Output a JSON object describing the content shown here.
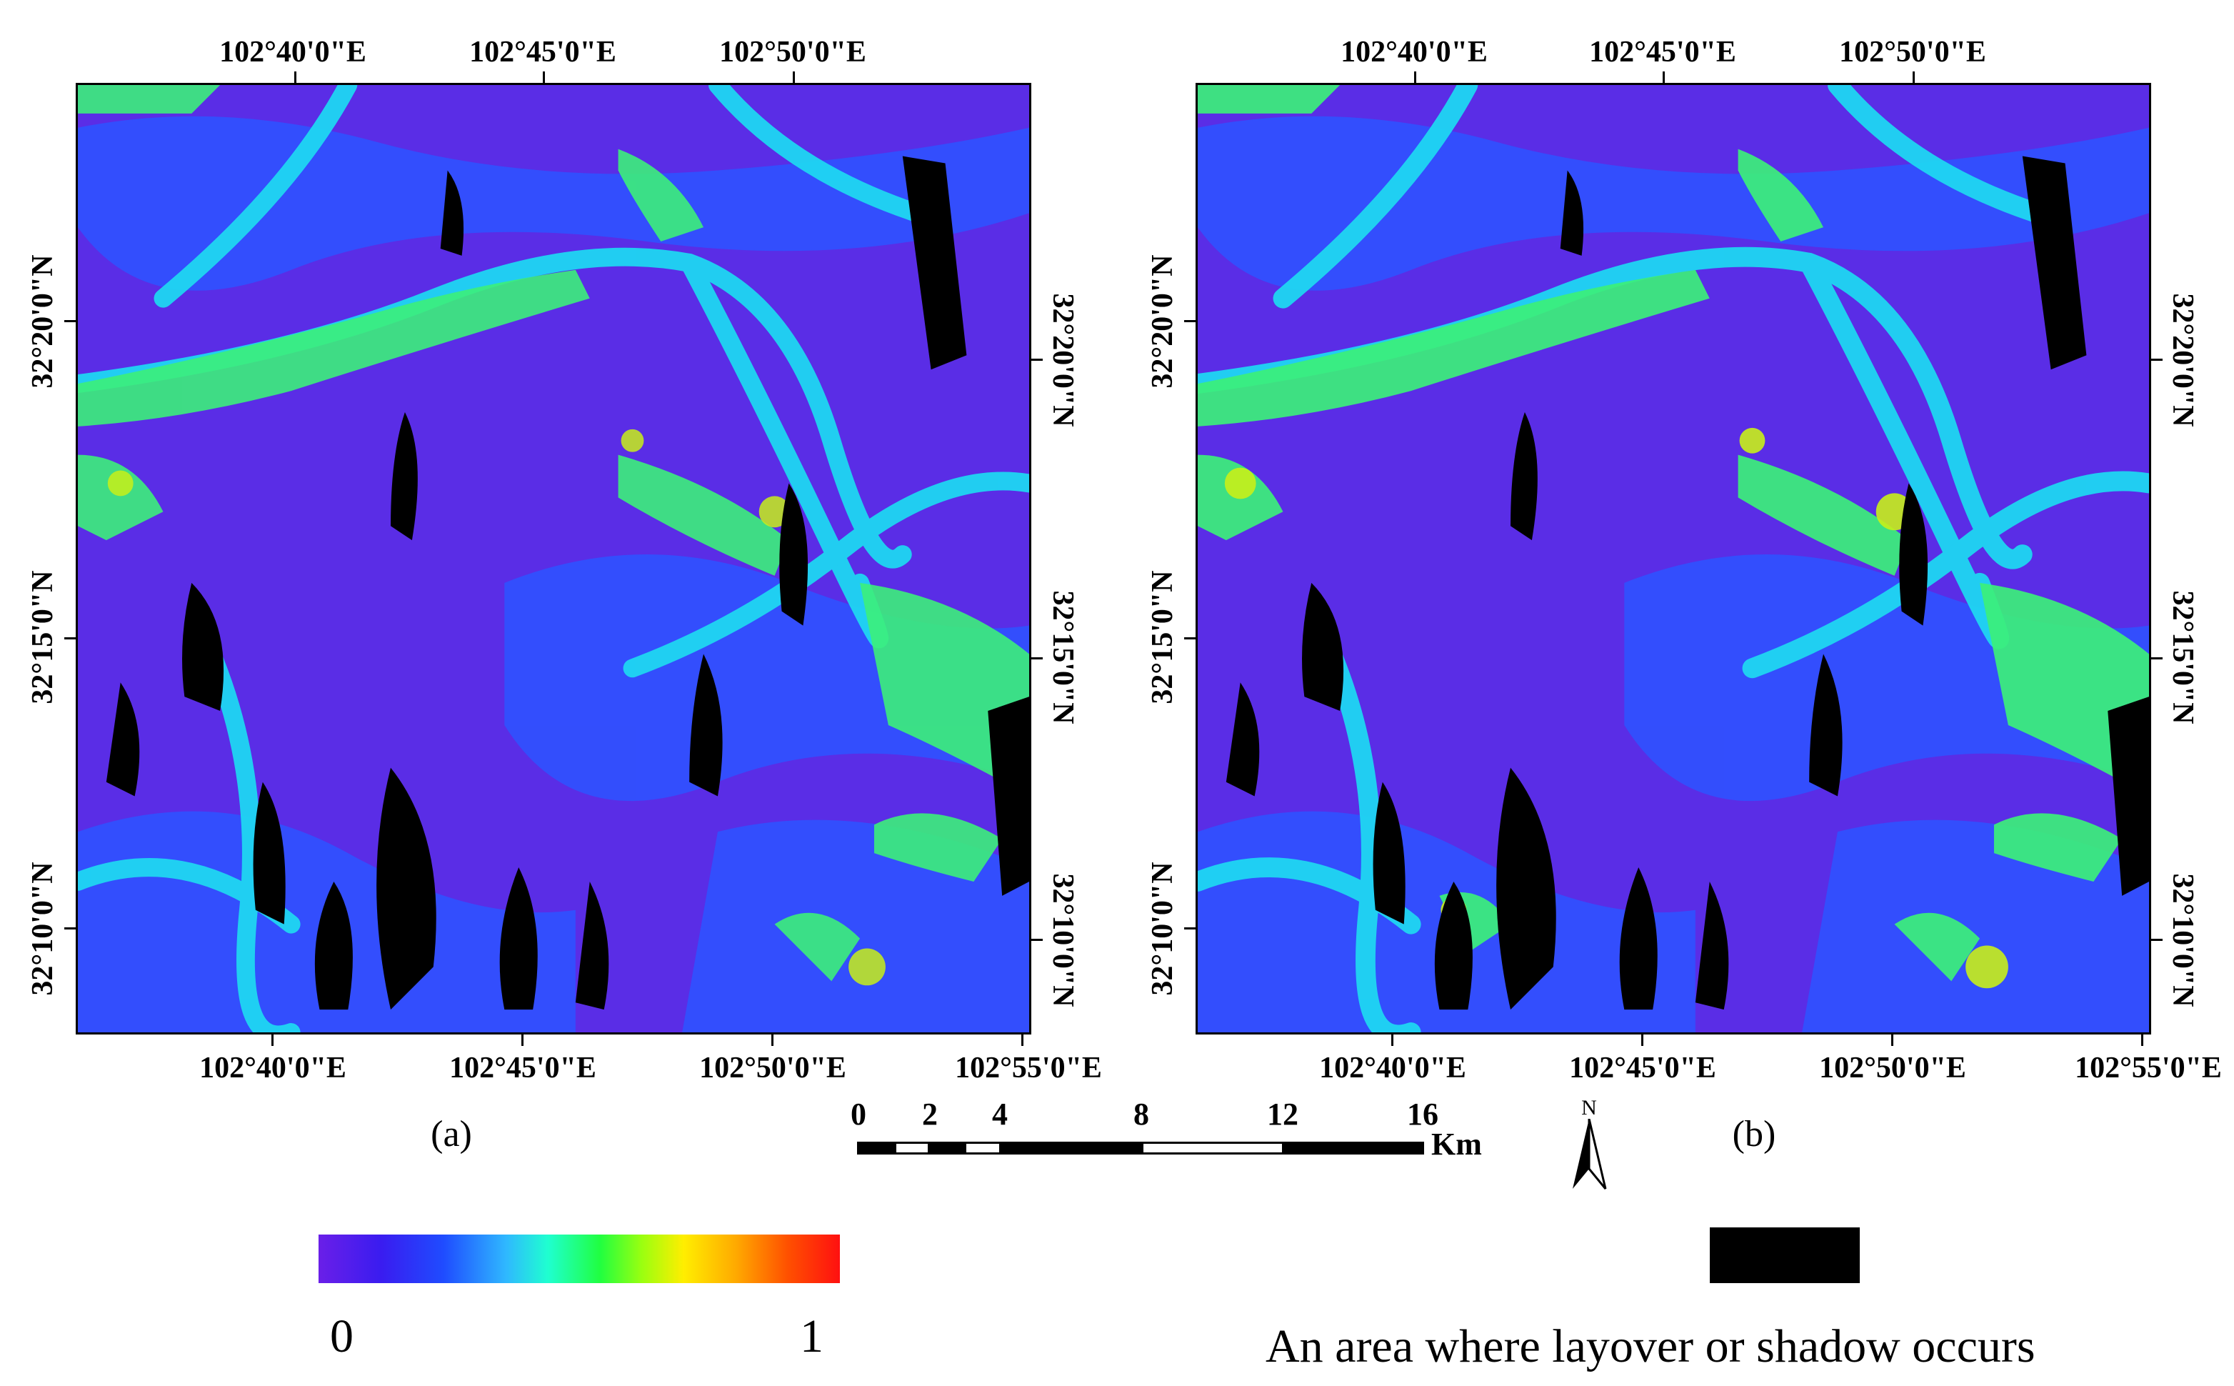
{
  "panels": [
    {
      "id": "a",
      "label": "(a)",
      "top_ticks": [
        "102°40'0\"E",
        "102°45'0\"E",
        "102°50'0\"E"
      ],
      "bottom_ticks": [
        "102°40'0\"E",
        "102°45'0\"E",
        "102°50'0\"E",
        "102°55'0\"E"
      ],
      "left_ticks": [
        "32°20'0\"N",
        "32°15'0\"N",
        "32°10'0\"N"
      ],
      "right_ticks": [
        "32°20'0\"N",
        "32°15'0\"N",
        "32°10'0\"N"
      ]
    },
    {
      "id": "b",
      "label": "(b)",
      "top_ticks": [
        "102°40'0\"E",
        "102°45'0\"E",
        "102°50'0\"E"
      ],
      "bottom_ticks": [
        "102°40'0\"E",
        "102°45'0\"E",
        "102°50'0\"E",
        "102°55'0\"E"
      ],
      "left_ticks": [
        "32°20'0\"N",
        "32°15'0\"N",
        "32°10'0\"N"
      ],
      "right_ticks": [
        "32°20'0\"N",
        "32°15'0\"N",
        "32°10'0\"N"
      ]
    }
  ],
  "scale_bar": {
    "numbers": [
      "0",
      "2",
      "4",
      "8",
      "12",
      "16"
    ],
    "unit": "Km"
  },
  "north_arrow": {
    "label": "N"
  },
  "colorbar": {
    "min": "0",
    "max": "1"
  },
  "shadow_legend": {
    "text": "An area where layover or shadow occurs"
  },
  "colors": {
    "base": "#5a2de6",
    "blue": "#2f52ff",
    "cyan": "#1fd6f2",
    "green": "#3cf07a",
    "yellow": "#c8f018",
    "shadow": "#000000"
  }
}
